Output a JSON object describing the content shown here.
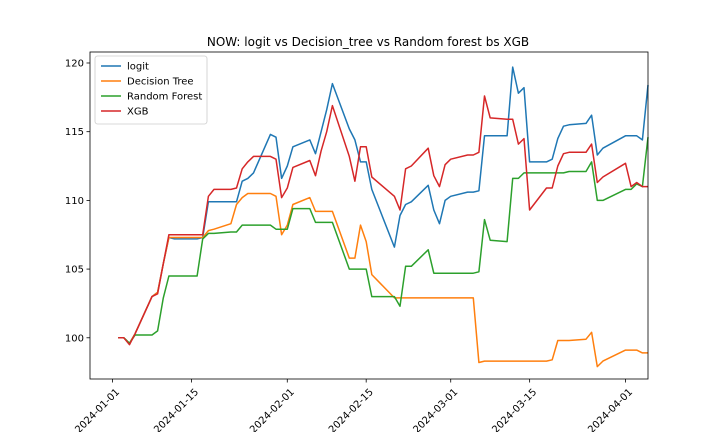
{
  "chart_data": {
    "type": "line",
    "title": "NOW: logit vs Decision_tree vs Random forest bs XGB",
    "xlabel": "",
    "ylabel": "",
    "x_ticks": [
      "2024-01-01",
      "2024-01-15",
      "2024-02-01",
      "2024-02-15",
      "2024-03-01",
      "2024-03-15",
      "2024-04-01"
    ],
    "y_ticks": [
      100,
      105,
      110,
      115,
      120
    ],
    "xlim": [
      "2023-12-28",
      "2024-04-05"
    ],
    "ylim": [
      97.0,
      120.8
    ],
    "grid": false,
    "legend_position": "top-left",
    "series": [
      {
        "name": "logit",
        "color": "#1f77b4",
        "points": [
          [
            "2024-01-02",
            100.0
          ],
          [
            "2024-01-03",
            100.0
          ],
          [
            "2024-01-04",
            99.6
          ],
          [
            "2024-01-05",
            100.3
          ],
          [
            "2024-01-08",
            103.0
          ],
          [
            "2024-01-09",
            103.3
          ],
          [
            "2024-01-10",
            105.4
          ],
          [
            "2024-01-11",
            107.3
          ],
          [
            "2024-01-12",
            107.2
          ],
          [
            "2024-01-16",
            107.2
          ],
          [
            "2024-01-17",
            107.3
          ],
          [
            "2024-01-18",
            109.9
          ],
          [
            "2024-01-19",
            109.9
          ],
          [
            "2024-01-22",
            109.9
          ],
          [
            "2024-01-23",
            109.9
          ],
          [
            "2024-01-24",
            111.4
          ],
          [
            "2024-01-25",
            111.6
          ],
          [
            "2024-01-26",
            112.0
          ],
          [
            "2024-01-29",
            114.8
          ],
          [
            "2024-01-30",
            114.6
          ],
          [
            "2024-01-31",
            111.6
          ],
          [
            "2024-02-01",
            112.5
          ],
          [
            "2024-02-02",
            113.9
          ],
          [
            "2024-02-05",
            114.4
          ],
          [
            "2024-02-06",
            113.4
          ],
          [
            "2024-02-07",
            115.0
          ],
          [
            "2024-02-08",
            116.6
          ],
          [
            "2024-02-09",
            118.5
          ],
          [
            "2024-02-12",
            115.2
          ],
          [
            "2024-02-13",
            114.4
          ],
          [
            "2024-02-14",
            112.8
          ],
          [
            "2024-02-15",
            112.8
          ],
          [
            "2024-02-16",
            110.8
          ],
          [
            "2024-02-20",
            106.6
          ],
          [
            "2024-02-21",
            108.9
          ],
          [
            "2024-02-22",
            109.7
          ],
          [
            "2024-02-23",
            109.9
          ],
          [
            "2024-02-26",
            111.1
          ],
          [
            "2024-02-27",
            109.3
          ],
          [
            "2024-02-28",
            108.3
          ],
          [
            "2024-02-29",
            110.0
          ],
          [
            "2024-03-01",
            110.3
          ],
          [
            "2024-03-04",
            110.6
          ],
          [
            "2024-03-05",
            110.6
          ],
          [
            "2024-03-06",
            110.7
          ],
          [
            "2024-03-07",
            114.7
          ],
          [
            "2024-03-08",
            114.7
          ],
          [
            "2024-03-11",
            114.7
          ],
          [
            "2024-03-12",
            119.7
          ],
          [
            "2024-03-13",
            117.8
          ],
          [
            "2024-03-14",
            118.2
          ],
          [
            "2024-03-15",
            112.8
          ],
          [
            "2024-03-18",
            112.8
          ],
          [
            "2024-03-19",
            113.0
          ],
          [
            "2024-03-20",
            114.5
          ],
          [
            "2024-03-21",
            115.4
          ],
          [
            "2024-03-22",
            115.5
          ],
          [
            "2024-03-25",
            115.6
          ],
          [
            "2024-03-26",
            116.2
          ],
          [
            "2024-03-27",
            113.3
          ],
          [
            "2024-03-28",
            113.8
          ],
          [
            "2024-04-01",
            114.7
          ],
          [
            "2024-04-02",
            114.7
          ],
          [
            "2024-04-03",
            114.7
          ],
          [
            "2024-04-04",
            114.4
          ],
          [
            "2024-04-05",
            118.4
          ]
        ]
      },
      {
        "name": "Decision Tree",
        "color": "#ff7f0e",
        "points": [
          [
            "2024-01-02",
            100.0
          ],
          [
            "2024-01-03",
            100.0
          ],
          [
            "2024-01-04",
            99.6
          ],
          [
            "2024-01-05",
            100.3
          ],
          [
            "2024-01-08",
            103.0
          ],
          [
            "2024-01-09",
            103.3
          ],
          [
            "2024-01-10",
            105.4
          ],
          [
            "2024-01-11",
            107.3
          ],
          [
            "2024-01-12",
            107.3
          ],
          [
            "2024-01-16",
            107.3
          ],
          [
            "2024-01-17",
            107.3
          ],
          [
            "2024-01-18",
            107.8
          ],
          [
            "2024-01-19",
            107.9
          ],
          [
            "2024-01-22",
            108.3
          ],
          [
            "2024-01-23",
            109.7
          ],
          [
            "2024-01-24",
            110.2
          ],
          [
            "2024-01-25",
            110.5
          ],
          [
            "2024-01-26",
            110.5
          ],
          [
            "2024-01-29",
            110.5
          ],
          [
            "2024-01-30",
            110.3
          ],
          [
            "2024-01-31",
            107.5
          ],
          [
            "2024-02-01",
            108.2
          ],
          [
            "2024-02-02",
            109.7
          ],
          [
            "2024-02-05",
            110.2
          ],
          [
            "2024-02-06",
            109.2
          ],
          [
            "2024-02-07",
            109.2
          ],
          [
            "2024-02-08",
            109.2
          ],
          [
            "2024-02-09",
            109.2
          ],
          [
            "2024-02-12",
            105.8
          ],
          [
            "2024-02-13",
            105.8
          ],
          [
            "2024-02-14",
            108.2
          ],
          [
            "2024-02-15",
            107.0
          ],
          [
            "2024-02-16",
            104.6
          ],
          [
            "2024-02-20",
            102.9
          ],
          [
            "2024-02-21",
            102.9
          ],
          [
            "2024-02-22",
            102.9
          ],
          [
            "2024-02-23",
            102.9
          ],
          [
            "2024-02-26",
            102.9
          ],
          [
            "2024-02-27",
            102.9
          ],
          [
            "2024-02-28",
            102.9
          ],
          [
            "2024-02-29",
            102.9
          ],
          [
            "2024-03-01",
            102.9
          ],
          [
            "2024-03-04",
            102.9
          ],
          [
            "2024-03-05",
            102.9
          ],
          [
            "2024-03-06",
            98.2
          ],
          [
            "2024-03-07",
            98.3
          ],
          [
            "2024-03-08",
            98.3
          ],
          [
            "2024-03-11",
            98.3
          ],
          [
            "2024-03-12",
            98.3
          ],
          [
            "2024-03-13",
            98.3
          ],
          [
            "2024-03-14",
            98.3
          ],
          [
            "2024-03-15",
            98.3
          ],
          [
            "2024-03-18",
            98.3
          ],
          [
            "2024-03-19",
            98.4
          ],
          [
            "2024-03-20",
            99.8
          ],
          [
            "2024-03-21",
            99.8
          ],
          [
            "2024-03-22",
            99.8
          ],
          [
            "2024-03-25",
            99.9
          ],
          [
            "2024-03-26",
            100.4
          ],
          [
            "2024-03-27",
            97.9
          ],
          [
            "2024-03-28",
            98.3
          ],
          [
            "2024-04-01",
            99.1
          ],
          [
            "2024-04-02",
            99.1
          ],
          [
            "2024-04-03",
            99.1
          ],
          [
            "2024-04-04",
            98.9
          ],
          [
            "2024-04-05",
            98.9
          ]
        ]
      },
      {
        "name": "Random Forest",
        "color": "#2ca02c",
        "points": [
          [
            "2024-01-02",
            100.0
          ],
          [
            "2024-01-03",
            100.0
          ],
          [
            "2024-01-04",
            99.6
          ],
          [
            "2024-01-05",
            100.2
          ],
          [
            "2024-01-08",
            100.2
          ],
          [
            "2024-01-09",
            100.5
          ],
          [
            "2024-01-10",
            102.9
          ],
          [
            "2024-01-11",
            104.5
          ],
          [
            "2024-01-12",
            104.5
          ],
          [
            "2024-01-16",
            104.5
          ],
          [
            "2024-01-17",
            107.2
          ],
          [
            "2024-01-18",
            107.6
          ],
          [
            "2024-01-19",
            107.6
          ],
          [
            "2024-01-22",
            107.7
          ],
          [
            "2024-01-23",
            107.7
          ],
          [
            "2024-01-24",
            108.2
          ],
          [
            "2024-01-25",
            108.2
          ],
          [
            "2024-01-26",
            108.2
          ],
          [
            "2024-01-29",
            108.2
          ],
          [
            "2024-01-30",
            107.9
          ],
          [
            "2024-01-31",
            107.9
          ],
          [
            "2024-02-01",
            107.9
          ],
          [
            "2024-02-02",
            109.4
          ],
          [
            "2024-02-05",
            109.4
          ],
          [
            "2024-02-06",
            108.4
          ],
          [
            "2024-02-07",
            108.4
          ],
          [
            "2024-02-08",
            108.4
          ],
          [
            "2024-02-09",
            108.4
          ],
          [
            "2024-02-12",
            105.0
          ],
          [
            "2024-02-13",
            105.0
          ],
          [
            "2024-02-14",
            105.0
          ],
          [
            "2024-02-15",
            105.0
          ],
          [
            "2024-02-16",
            103.0
          ],
          [
            "2024-02-20",
            103.0
          ],
          [
            "2024-02-21",
            102.3
          ],
          [
            "2024-02-22",
            105.2
          ],
          [
            "2024-02-23",
            105.2
          ],
          [
            "2024-02-26",
            106.4
          ],
          [
            "2024-02-27",
            104.7
          ],
          [
            "2024-02-28",
            104.7
          ],
          [
            "2024-02-29",
            104.7
          ],
          [
            "2024-03-01",
            104.7
          ],
          [
            "2024-03-04",
            104.7
          ],
          [
            "2024-03-05",
            104.7
          ],
          [
            "2024-03-06",
            104.8
          ],
          [
            "2024-03-07",
            108.6
          ],
          [
            "2024-03-08",
            107.1
          ],
          [
            "2024-03-11",
            107.0
          ],
          [
            "2024-03-12",
            111.6
          ],
          [
            "2024-03-13",
            111.6
          ],
          [
            "2024-03-14",
            112.0
          ],
          [
            "2024-03-15",
            112.0
          ],
          [
            "2024-03-18",
            112.0
          ],
          [
            "2024-03-19",
            112.0
          ],
          [
            "2024-03-20",
            112.0
          ],
          [
            "2024-03-21",
            112.0
          ],
          [
            "2024-03-22",
            112.1
          ],
          [
            "2024-03-25",
            112.1
          ],
          [
            "2024-03-26",
            112.8
          ],
          [
            "2024-03-27",
            110.0
          ],
          [
            "2024-03-28",
            110.0
          ],
          [
            "2024-04-01",
            110.8
          ],
          [
            "2024-04-02",
            110.8
          ],
          [
            "2024-04-03",
            111.2
          ],
          [
            "2024-04-04",
            111.0
          ],
          [
            "2024-04-05",
            114.6
          ]
        ]
      },
      {
        "name": "XGB",
        "color": "#d62728",
        "points": [
          [
            "2024-01-02",
            100.0
          ],
          [
            "2024-01-03",
            100.0
          ],
          [
            "2024-01-04",
            99.5
          ],
          [
            "2024-01-05",
            100.3
          ],
          [
            "2024-01-08",
            103.0
          ],
          [
            "2024-01-09",
            103.2
          ],
          [
            "2024-01-10",
            105.4
          ],
          [
            "2024-01-11",
            107.5
          ],
          [
            "2024-01-12",
            107.5
          ],
          [
            "2024-01-16",
            107.5
          ],
          [
            "2024-01-17",
            107.5
          ],
          [
            "2024-01-18",
            110.3
          ],
          [
            "2024-01-19",
            110.8
          ],
          [
            "2024-01-22",
            110.8
          ],
          [
            "2024-01-23",
            110.9
          ],
          [
            "2024-01-24",
            112.3
          ],
          [
            "2024-01-25",
            112.8
          ],
          [
            "2024-01-26",
            113.2
          ],
          [
            "2024-01-29",
            113.2
          ],
          [
            "2024-01-30",
            113.0
          ],
          [
            "2024-01-31",
            110.2
          ],
          [
            "2024-02-01",
            110.9
          ],
          [
            "2024-02-02",
            112.4
          ],
          [
            "2024-02-05",
            112.9
          ],
          [
            "2024-02-06",
            111.8
          ],
          [
            "2024-02-07",
            113.6
          ],
          [
            "2024-02-08",
            115.0
          ],
          [
            "2024-02-09",
            116.9
          ],
          [
            "2024-02-12",
            113.2
          ],
          [
            "2024-02-13",
            111.4
          ],
          [
            "2024-02-14",
            113.9
          ],
          [
            "2024-02-15",
            113.9
          ],
          [
            "2024-02-16",
            111.7
          ],
          [
            "2024-02-20",
            110.3
          ],
          [
            "2024-02-21",
            109.3
          ],
          [
            "2024-02-22",
            112.3
          ],
          [
            "2024-02-23",
            112.5
          ],
          [
            "2024-02-26",
            113.8
          ],
          [
            "2024-02-27",
            111.8
          ],
          [
            "2024-02-28",
            111.0
          ],
          [
            "2024-02-29",
            112.6
          ],
          [
            "2024-03-01",
            113.0
          ],
          [
            "2024-03-04",
            113.3
          ],
          [
            "2024-03-05",
            113.3
          ],
          [
            "2024-03-06",
            113.5
          ],
          [
            "2024-03-07",
            117.6
          ],
          [
            "2024-03-08",
            116.0
          ],
          [
            "2024-03-11",
            115.9
          ],
          [
            "2024-03-12",
            115.9
          ],
          [
            "2024-03-13",
            114.1
          ],
          [
            "2024-03-14",
            114.5
          ],
          [
            "2024-03-15",
            109.3
          ],
          [
            "2024-03-18",
            110.9
          ],
          [
            "2024-03-19",
            110.9
          ],
          [
            "2024-03-20",
            112.5
          ],
          [
            "2024-03-21",
            113.4
          ],
          [
            "2024-03-22",
            113.5
          ],
          [
            "2024-03-25",
            113.5
          ],
          [
            "2024-03-26",
            114.1
          ],
          [
            "2024-03-27",
            111.3
          ],
          [
            "2024-03-28",
            111.7
          ],
          [
            "2024-04-01",
            112.7
          ],
          [
            "2024-04-02",
            111.0
          ],
          [
            "2024-04-03",
            111.3
          ],
          [
            "2024-04-04",
            111.0
          ],
          [
            "2024-04-05",
            111.0
          ]
        ]
      }
    ]
  }
}
